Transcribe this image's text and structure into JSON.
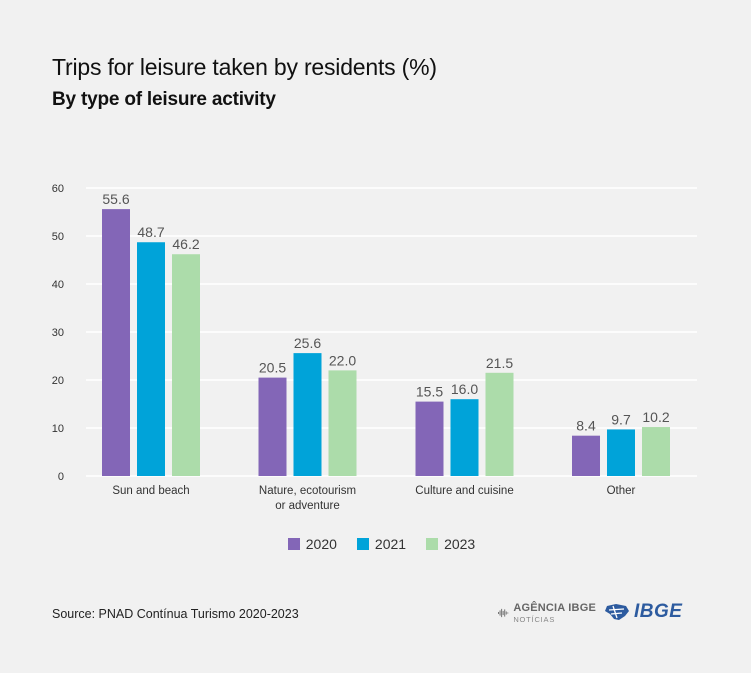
{
  "title": "Trips for leisure taken by residents (%)",
  "subtitle": "By type of leisure activity",
  "source": "Source: PNAD Contínua Turismo 2020-2023",
  "logos": {
    "agencia_main": "AGÊNCIA IBGE",
    "agencia_sub": "NOTÍCIAS",
    "ibge": "IBGE"
  },
  "colors": {
    "2020": "#8366b7",
    "2021": "#00a3d9",
    "2023": "#acdcaa",
    "grid": "#ffffff",
    "axis_text": "#333333",
    "label_text": "#555555",
    "logo_blue": "#2d5b9f"
  },
  "chart_data": {
    "type": "bar",
    "title": "Trips for leisure taken by residents (%)",
    "subtitle": "By type of leisure activity",
    "categories": [
      [
        "Sun and beach"
      ],
      [
        "Nature, ecotourism",
        "or adventure"
      ],
      [
        "Culture and cuisine"
      ],
      [
        "Other"
      ]
    ],
    "series": [
      {
        "name": "2020",
        "values": [
          55.6,
          20.5,
          15.5,
          8.4
        ]
      },
      {
        "name": "2021",
        "values": [
          48.7,
          25.6,
          16.0,
          9.7
        ]
      },
      {
        "name": "2023",
        "values": [
          46.2,
          22.0,
          21.5,
          10.2
        ]
      }
    ],
    "value_labels": [
      [
        "55.6",
        "20.5",
        "15.5",
        "8.4"
      ],
      [
        "48.7",
        "25.6",
        "16.0",
        "9.7"
      ],
      [
        "46.2",
        "22.0",
        "21.5",
        "10.2"
      ]
    ],
    "ylim": [
      0,
      60
    ],
    "yticks": [
      0,
      10,
      20,
      30,
      40,
      50,
      60
    ],
    "ytick_labels": [
      "0",
      "10",
      "20",
      "30",
      "40",
      "50",
      "60"
    ],
    "grid": true,
    "legend": "bottom-center",
    "xlabel": "",
    "ylabel": ""
  }
}
